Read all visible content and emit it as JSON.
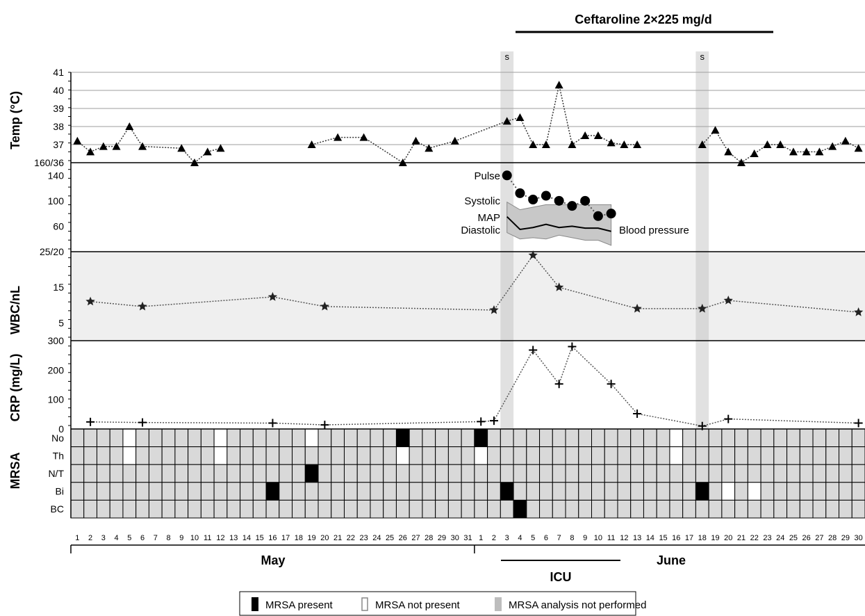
{
  "chart_data": {
    "type": "line",
    "treatment": {
      "label": "Ceftaroline 2×225 mg/d"
    },
    "surgery_marker": "s",
    "x_ticks_may": [
      "1",
      "2",
      "3",
      "4",
      "5",
      "6",
      "7",
      "8",
      "9",
      "10",
      "11",
      "12",
      "13",
      "14",
      "15",
      "16",
      "17",
      "18",
      "19",
      "20",
      "21",
      "22",
      "23",
      "24",
      "25",
      "26",
      "27",
      "28",
      "29",
      "30",
      "31"
    ],
    "x_ticks_june": [
      "1",
      "2",
      "3",
      "4",
      "5",
      "6",
      "7",
      "8",
      "9",
      "10",
      "11",
      "12",
      "13",
      "14",
      "15",
      "16",
      "17",
      "18",
      "19",
      "20",
      "21",
      "22",
      "23",
      "24",
      "25",
      "26",
      "27",
      "28",
      "29",
      "30"
    ],
    "months": [
      "May",
      "June"
    ],
    "icu_label": "ICU",
    "temp": {
      "ylabel": "Temp (°C)",
      "ticks": [
        "41",
        "40",
        "39",
        "38",
        "37"
      ],
      "ylim": [
        36,
        41
      ],
      "points": [
        [
          "May-1",
          37.2
        ],
        [
          "May-2",
          36.6
        ],
        [
          "May-3",
          36.9
        ],
        [
          "May-4",
          36.9
        ],
        [
          "May-5",
          38.0
        ],
        [
          "May-6",
          36.9
        ],
        [
          "May-9",
          36.8
        ],
        [
          "May-10",
          36.0
        ],
        [
          "May-11",
          36.6
        ],
        [
          "May-12",
          36.8
        ],
        [
          "May-19",
          37.0
        ],
        [
          "May-21",
          37.4
        ],
        [
          "May-23",
          37.4
        ],
        [
          "May-26",
          36.0
        ],
        [
          "May-27",
          37.2
        ],
        [
          "May-28",
          36.8
        ],
        [
          "May-30",
          37.2
        ],
        [
          "Jun-3",
          38.3
        ],
        [
          "Jun-4",
          38.5
        ],
        [
          "Jun-5",
          37.0
        ],
        [
          "Jun-6",
          37.0
        ],
        [
          "Jun-7",
          40.3
        ],
        [
          "Jun-8",
          37.0
        ],
        [
          "Jun-9",
          37.5
        ],
        [
          "Jun-10",
          37.5
        ],
        [
          "Jun-11",
          37.1
        ],
        [
          "Jun-12",
          37.0
        ],
        [
          "Jun-13",
          37.0
        ],
        [
          "Jun-18",
          37.0
        ],
        [
          "Jun-19",
          37.8
        ],
        [
          "Jun-20",
          36.6
        ],
        [
          "Jun-21",
          36.0
        ],
        [
          "Jun-22",
          36.5
        ],
        [
          "Jun-23",
          37.0
        ],
        [
          "Jun-24",
          37.0
        ],
        [
          "Jun-25",
          36.6
        ],
        [
          "Jun-26",
          36.6
        ],
        [
          "Jun-27",
          36.6
        ],
        [
          "Jun-28",
          36.9
        ],
        [
          "Jun-29",
          37.2
        ],
        [
          "Jun-30",
          36.8
        ]
      ]
    },
    "vitals": {
      "ticks": [
        "140",
        "100",
        "60"
      ],
      "boundary_label": "160/36",
      "ylim": [
        20,
        160
      ],
      "pulse_label": "Pulse",
      "systolic_label": "Systolic",
      "map_label": "MAP",
      "diastolic_label": "Diastolic",
      "bp_label": "Blood pressure",
      "pulse": [
        [
          "Jun-3",
          140
        ],
        [
          "Jun-4",
          112
        ],
        [
          "Jun-5",
          102
        ],
        [
          "Jun-6",
          108
        ],
        [
          "Jun-7",
          100
        ],
        [
          "Jun-8",
          92
        ],
        [
          "Jun-9",
          100
        ],
        [
          "Jun-10",
          76
        ],
        [
          "Jun-11",
          80
        ]
      ],
      "systolic": [
        [
          "Jun-3",
          98
        ],
        [
          "Jun-4",
          86
        ],
        [
          "Jun-5",
          90
        ],
        [
          "Jun-6",
          94
        ],
        [
          "Jun-7",
          94
        ],
        [
          "Jun-8",
          94
        ],
        [
          "Jun-9",
          94
        ],
        [
          "Jun-10",
          94
        ],
        [
          "Jun-11",
          94
        ]
      ],
      "map": [
        [
          "Jun-3",
          75
        ],
        [
          "Jun-4",
          55
        ],
        [
          "Jun-5",
          58
        ],
        [
          "Jun-6",
          63
        ],
        [
          "Jun-7",
          58
        ],
        [
          "Jun-8",
          60
        ],
        [
          "Jun-9",
          57
        ],
        [
          "Jun-10",
          57
        ],
        [
          "Jun-11",
          52
        ]
      ],
      "diastolic": [
        [
          "Jun-3",
          50
        ],
        [
          "Jun-4",
          40
        ],
        [
          "Jun-5",
          42
        ],
        [
          "Jun-6",
          40
        ],
        [
          "Jun-7",
          46
        ],
        [
          "Jun-8",
          42
        ],
        [
          "Jun-9",
          38
        ],
        [
          "Jun-10",
          38
        ],
        [
          "Jun-11",
          30
        ]
      ]
    },
    "wbc": {
      "ylabel": "WBC/nL",
      "ticks": [
        "15",
        "5"
      ],
      "boundary_label": "25/20",
      "ylim": [
        0,
        25
      ],
      "points": [
        [
          "May-2",
          11
        ],
        [
          "May-6",
          9.6
        ],
        [
          "May-16",
          12.3
        ],
        [
          "May-20",
          9.6
        ],
        [
          "Jun-2",
          8.6
        ],
        [
          "Jun-5",
          24
        ],
        [
          "Jun-7",
          15
        ],
        [
          "Jun-13",
          9
        ],
        [
          "Jun-18",
          9
        ],
        [
          "Jun-20",
          11.3
        ],
        [
          "Jun-30",
          8
        ]
      ]
    },
    "crp": {
      "ylabel": "CRP (mg/L)",
      "ticks": [
        "300",
        "200",
        "100",
        "0"
      ],
      "ylim": [
        0,
        300
      ],
      "points": [
        [
          "May-2",
          24
        ],
        [
          "May-6",
          22
        ],
        [
          "May-16",
          20
        ],
        [
          "May-20",
          14
        ],
        [
          "Jun-1",
          25
        ],
        [
          "Jun-2",
          28
        ],
        [
          "Jun-5",
          268
        ],
        [
          "Jun-7",
          153
        ],
        [
          "Jun-8",
          280
        ],
        [
          "Jun-11",
          153
        ],
        [
          "Jun-13",
          52
        ],
        [
          "Jun-18",
          10
        ],
        [
          "Jun-20",
          34
        ],
        [
          "Jun-30",
          20
        ]
      ]
    },
    "mrsa": {
      "ylabel": "MRSA",
      "rows": [
        "No",
        "Th",
        "N/T",
        "Bi",
        "BC"
      ],
      "present": [
        [
          "No",
          "May-26"
        ],
        [
          "No",
          "Jun-1"
        ],
        [
          "N/T",
          "May-19"
        ],
        [
          "Bi",
          "May-16"
        ],
        [
          "Bi",
          "Jun-3"
        ],
        [
          "Bi",
          "Jun-18"
        ],
        [
          "BC",
          "Jun-4"
        ]
      ],
      "not_present": [
        [
          "No",
          "May-5"
        ],
        [
          "No",
          "May-12"
        ],
        [
          "No",
          "May-19"
        ],
        [
          "Th",
          "May-5"
        ],
        [
          "Th",
          "May-12"
        ],
        [
          "Th",
          "May-26"
        ],
        [
          "Th",
          "Jun-1"
        ],
        [
          "Th",
          "Jun-16"
        ],
        [
          "Bi",
          "Jun-20"
        ],
        [
          "Bi",
          "Jun-22"
        ],
        [
          "No",
          "Jun-16"
        ]
      ]
    },
    "legend": [
      {
        "key": "present",
        "label": "MRSA present"
      },
      {
        "key": "not_present",
        "label": "MRSA not present"
      },
      {
        "key": "not_performed",
        "label": "MRSA analysis not performed"
      }
    ],
    "colors": {
      "cell_grey": "#d9d9d9",
      "panel_grey": "#efefef",
      "shade": "#e0e0e0",
      "black": "#000000",
      "white": "#ffffff",
      "band": "#bdbdbd"
    }
  }
}
